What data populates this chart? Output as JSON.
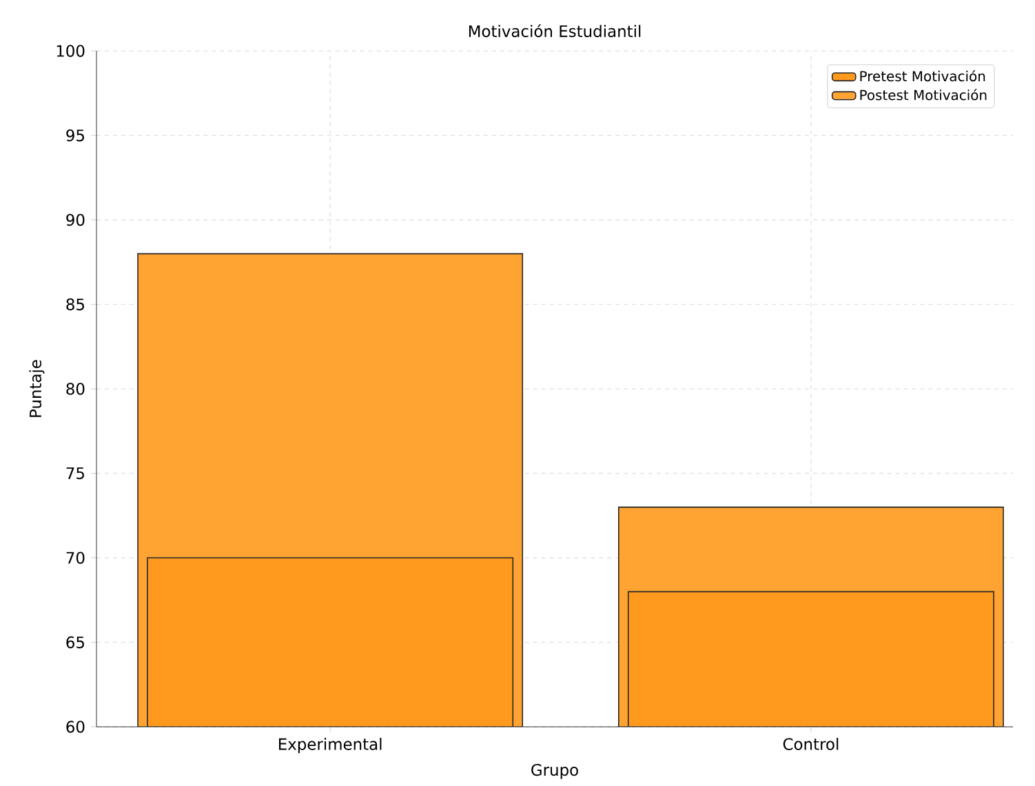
{
  "chart_data": {
    "type": "bar",
    "title": "Motivación Estudiantil",
    "xlabel": "Grupo",
    "ylabel": "Puntaje",
    "categories": [
      "Experimental",
      "Control"
    ],
    "series": [
      {
        "name": "Pretest Motivación",
        "color": "#ff9a1f",
        "values": [
          70,
          68
        ]
      },
      {
        "name": "Postest Motivación",
        "color": "#ffa333",
        "values": [
          88,
          73
        ]
      }
    ],
    "ylim": [
      60,
      100
    ],
    "yticks": [
      60,
      65,
      70,
      75,
      80,
      85,
      90,
      95,
      100
    ],
    "grid": true,
    "legend": "top right"
  }
}
